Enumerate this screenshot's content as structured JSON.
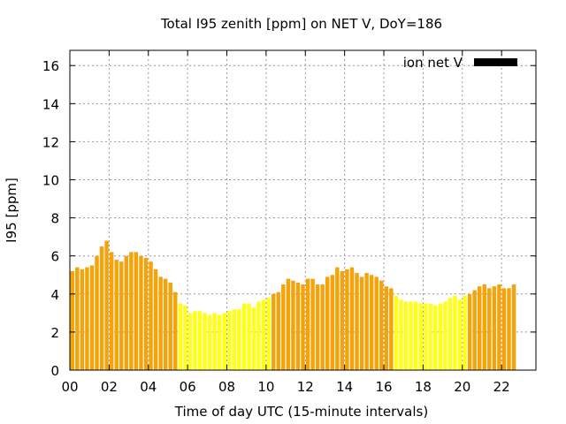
{
  "chart_data": {
    "type": "bar",
    "title": "Total I95 zenith [ppm] on NET V, DoY=186",
    "xlabel": "Time of day UTC (15-minute intervals)",
    "ylabel": "I95 [ppm]",
    "ylim": [
      0,
      16.8
    ],
    "xlim": [
      0,
      23.75
    ],
    "yticks": [
      0,
      2,
      4,
      6,
      8,
      10,
      12,
      14,
      16
    ],
    "xticks": [
      0,
      2,
      4,
      6,
      8,
      10,
      12,
      14,
      16,
      18,
      20,
      22
    ],
    "xtick_labels": [
      "00",
      "02",
      "04",
      "06",
      "08",
      "10",
      "12",
      "14",
      "16",
      "18",
      "20",
      "22"
    ],
    "grid": true,
    "legend": {
      "label": "ion net V",
      "position": "top-right",
      "color": "#000000"
    },
    "colors": {
      "orange": "#f5a30a",
      "yellow": "#ffff1a"
    },
    "series": [
      {
        "interval_hours": 0.25,
        "values": [
          5.2,
          5.4,
          5.3,
          5.4,
          5.5,
          6.0,
          6.5,
          6.8,
          6.2,
          5.8,
          5.7,
          6.0,
          6.2,
          6.2,
          6.0,
          5.9,
          5.7,
          5.3,
          4.9,
          4.8,
          4.6,
          4.1,
          3.5,
          3.4,
          3.0,
          3.1,
          3.1,
          3.0,
          2.9,
          3.0,
          2.9,
          3.0,
          3.1,
          3.2,
          3.2,
          3.5,
          3.5,
          3.3,
          3.6,
          3.7,
          3.8,
          4.0,
          4.1,
          4.5,
          4.8,
          4.7,
          4.6,
          4.5,
          4.8,
          4.8,
          4.5,
          4.5,
          4.9,
          5.0,
          5.4,
          5.2,
          5.3,
          5.4,
          5.1,
          4.9,
          5.1,
          5.0,
          4.9,
          4.7,
          4.4,
          4.3,
          3.9,
          3.7,
          3.6,
          3.6,
          3.6,
          3.5,
          3.5,
          3.5,
          3.4,
          3.5,
          3.6,
          3.8,
          3.9,
          3.7,
          3.9,
          4.0,
          4.2,
          4.4,
          4.5,
          4.3,
          4.4,
          4.5,
          4.3,
          4.3,
          4.5
        ],
        "colors": [
          "orange",
          "orange",
          "orange",
          "orange",
          "orange",
          "orange",
          "orange",
          "orange",
          "orange",
          "orange",
          "orange",
          "orange",
          "orange",
          "orange",
          "orange",
          "orange",
          "orange",
          "orange",
          "orange",
          "orange",
          "orange",
          "orange",
          "yellow",
          "yellow",
          "yellow",
          "yellow",
          "yellow",
          "yellow",
          "yellow",
          "yellow",
          "yellow",
          "yellow",
          "yellow",
          "yellow",
          "yellow",
          "yellow",
          "yellow",
          "yellow",
          "yellow",
          "yellow",
          "yellow",
          "orange",
          "orange",
          "orange",
          "orange",
          "orange",
          "orange",
          "orange",
          "orange",
          "orange",
          "orange",
          "orange",
          "orange",
          "orange",
          "orange",
          "orange",
          "orange",
          "orange",
          "orange",
          "orange",
          "orange",
          "orange",
          "orange",
          "orange",
          "orange",
          "orange",
          "yellow",
          "yellow",
          "yellow",
          "yellow",
          "yellow",
          "yellow",
          "yellow",
          "yellow",
          "yellow",
          "yellow",
          "yellow",
          "yellow",
          "yellow",
          "yellow",
          "yellow",
          "orange",
          "orange",
          "orange",
          "orange",
          "orange",
          "orange",
          "orange",
          "orange",
          "orange",
          "orange"
        ]
      }
    ]
  }
}
